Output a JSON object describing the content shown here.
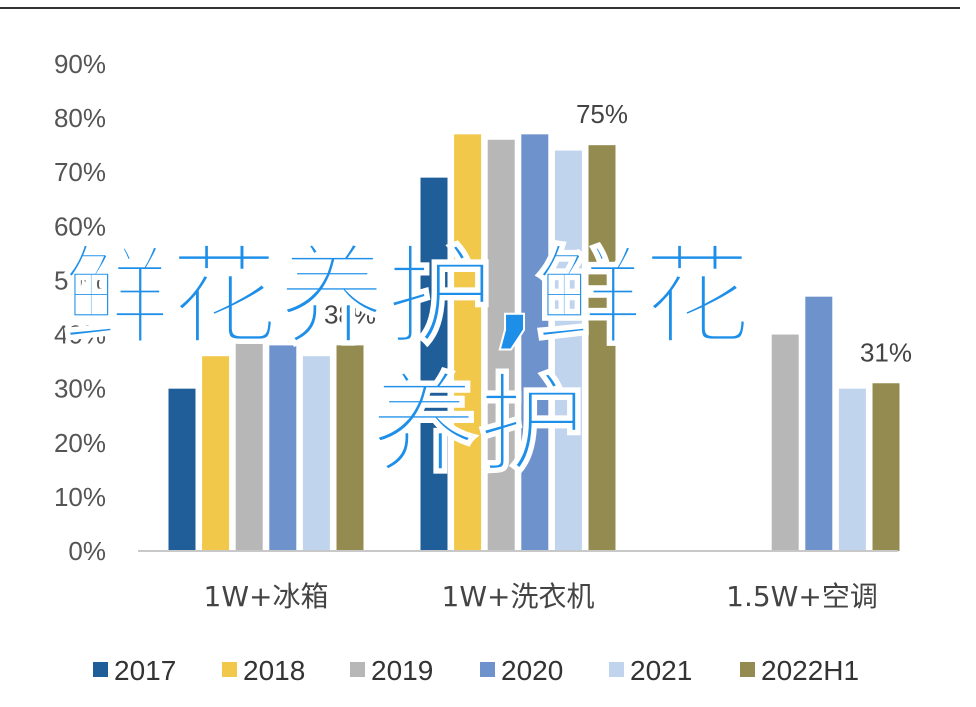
{
  "chart_data": {
    "type": "bar",
    "categories": [
      "1W+冰箱",
      "1W+洗衣机",
      "1.5W+空调"
    ],
    "series": [
      {
        "name": "2017",
        "color": "#1f5e99",
        "values": [
          30,
          69,
          null
        ]
      },
      {
        "name": "2018",
        "color": "#f2c84b",
        "values": [
          36,
          77,
          null
        ]
      },
      {
        "name": "2019",
        "color": "#b7b7b7",
        "values": [
          40,
          76,
          40
        ]
      },
      {
        "name": "2020",
        "color": "#6e92cc",
        "values": [
          38,
          77,
          47
        ]
      },
      {
        "name": "2021",
        "color": "#c0d4ee",
        "values": [
          36,
          74,
          30
        ]
      },
      {
        "name": "2022H1",
        "color": "#948b51",
        "values": [
          38,
          75,
          31
        ]
      }
    ],
    "data_labels": [
      {
        "category": 0,
        "series": 5,
        "text": "38%"
      },
      {
        "category": 1,
        "series": 5,
        "text": "75%"
      },
      {
        "category": 2,
        "series": 5,
        "text": "31%"
      }
    ],
    "ylim": [
      0,
      90
    ],
    "yticks": [
      "0%",
      "10%",
      "20%",
      "30%",
      "40%",
      "50%",
      "60%",
      "70%",
      "80%",
      "90%"
    ],
    "grid": false,
    "legend_position": "bottom"
  },
  "watermark": {
    "line1": "鲜花养护,鲜花",
    "line2": "养护"
  }
}
